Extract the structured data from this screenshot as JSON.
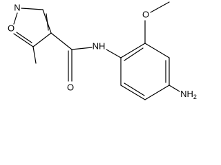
{
  "atoms": [
    {
      "label": "N"
    },
    {
      "label": "O"
    },
    {
      "label": "O"
    },
    {
      "label": "NH"
    },
    {
      "label": "O"
    },
    {
      "label": "NH",
      "subscript": "2"
    }
  ]
}
